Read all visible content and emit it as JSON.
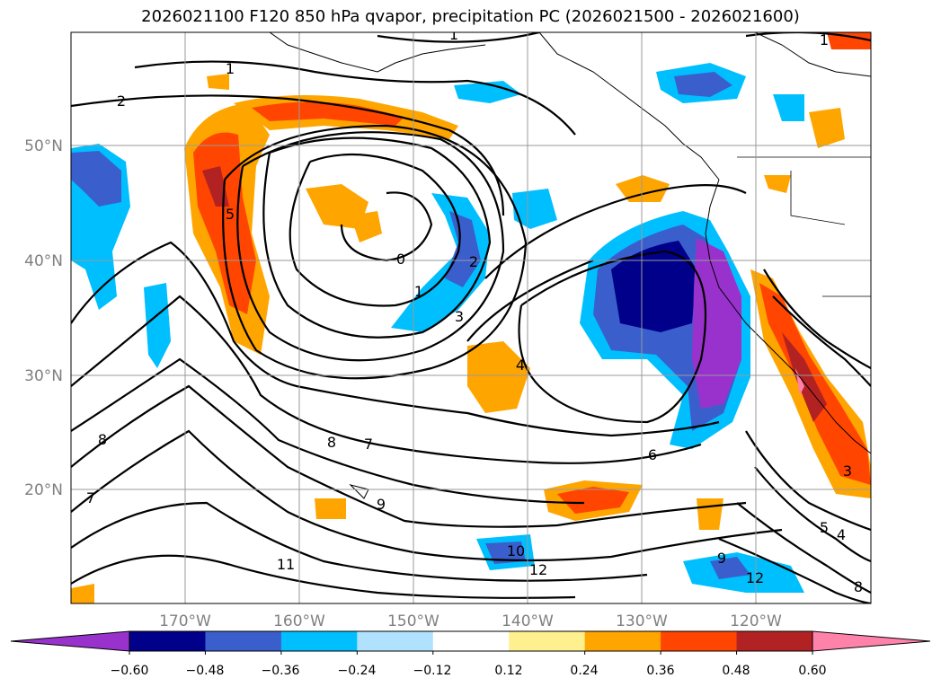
{
  "title": "2026021100 F120 850 hPa qvapor, precipitation PC (2026021500 - 2026021600)",
  "map": {
    "lon_ticks": [
      "170°W",
      "160°W",
      "150°W",
      "140°W",
      "130°W",
      "120°W"
    ],
    "lat_ticks": [
      "50°N",
      "40°N",
      "30°N",
      "20°N"
    ],
    "contour_labels": [
      "1",
      "1",
      "1",
      "2",
      "0",
      "1",
      "2",
      "3",
      "4",
      "5",
      "6",
      "7",
      "7",
      "8",
      "8",
      "9",
      "9",
      "10",
      "11",
      "12",
      "12",
      "3",
      "4",
      "5",
      "8"
    ]
  },
  "colorbar": {
    "ticks": [
      "−0.60",
      "−0.48",
      "−0.36",
      "−0.24",
      "−0.12",
      "0.12",
      "0.24",
      "0.36",
      "0.48",
      "0.60"
    ],
    "colors": [
      "#9932cc",
      "#00008b",
      "#3a5fcd",
      "#00bfff",
      "#b0e2ff",
      "#ffffff",
      "#fff08f",
      "#ffa500",
      "#ff4500",
      "#b22222",
      "#ff82ab"
    ]
  }
}
